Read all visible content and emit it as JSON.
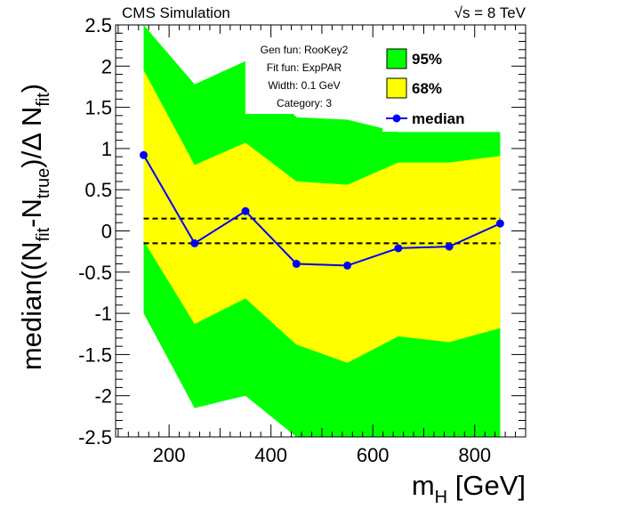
{
  "chart_data": {
    "type": "area",
    "header_left": "CMS Simulation",
    "header_right": "√s = 8 TeV",
    "ylabel": {
      "main": "median((N",
      "sub1": "fit",
      "mid": "-N",
      "sub2": "true",
      "tail": ")/Δ N",
      "sub3": "fit",
      "close": ")"
    },
    "xlabel": {
      "main": "m",
      "sub": "H",
      "unit": " [GeV]"
    },
    "xlim": [
      95,
      900
    ],
    "ylim": [
      -2.5,
      2.5
    ],
    "x_ticks": [
      200,
      400,
      600,
      800
    ],
    "y_ticks": [
      -2.5,
      -2,
      -1.5,
      -1,
      -0.5,
      0,
      0.5,
      1,
      1.5,
      2,
      2.5
    ],
    "y_tick_labels": [
      "-2.5",
      "-2",
      "-1.5",
      "-1",
      "-0.5",
      "0",
      "0.5",
      "1",
      "1.5",
      "2",
      "2.5"
    ],
    "x": [
      150,
      250,
      350,
      450,
      550,
      650,
      750,
      850
    ],
    "median": [
      0.92,
      -0.15,
      0.24,
      -0.4,
      -0.42,
      -0.21,
      -0.19,
      0.09
    ],
    "band68": {
      "low": [
        -0.12,
        -1.13,
        -0.82,
        -1.38,
        -1.6,
        -1.28,
        -1.35,
        -1.18
      ],
      "high": [
        1.95,
        0.8,
        1.07,
        0.6,
        0.56,
        0.83,
        0.83,
        0.91
      ]
    },
    "band95": {
      "low": [
        -1.0,
        -2.15,
        -2.0,
        -2.5,
        -2.5,
        -2.5,
        -2.5,
        -2.5
      ],
      "high": [
        2.5,
        1.78,
        2.06,
        1.38,
        1.35,
        1.2,
        1.2,
        1.2
      ]
    },
    "reference_lines": [
      0.15,
      -0.15
    ],
    "info": [
      "Gen fun: RooKey2",
      "Fit fun: ExpPAR",
      "Width: 0.1 GeV",
      "Category: 3"
    ],
    "legend": [
      {
        "label": "95%",
        "color": "#00ff00",
        "kind": "box"
      },
      {
        "label": "68%",
        "color": "#ffff00",
        "kind": "box"
      },
      {
        "label": "median",
        "color": "#0000ff",
        "kind": "line-marker"
      }
    ],
    "colors": {
      "band95": "#00ff00",
      "band68": "#ffff00",
      "median": "#0000ff",
      "marker": "#0000ff"
    },
    "grid": false
  }
}
